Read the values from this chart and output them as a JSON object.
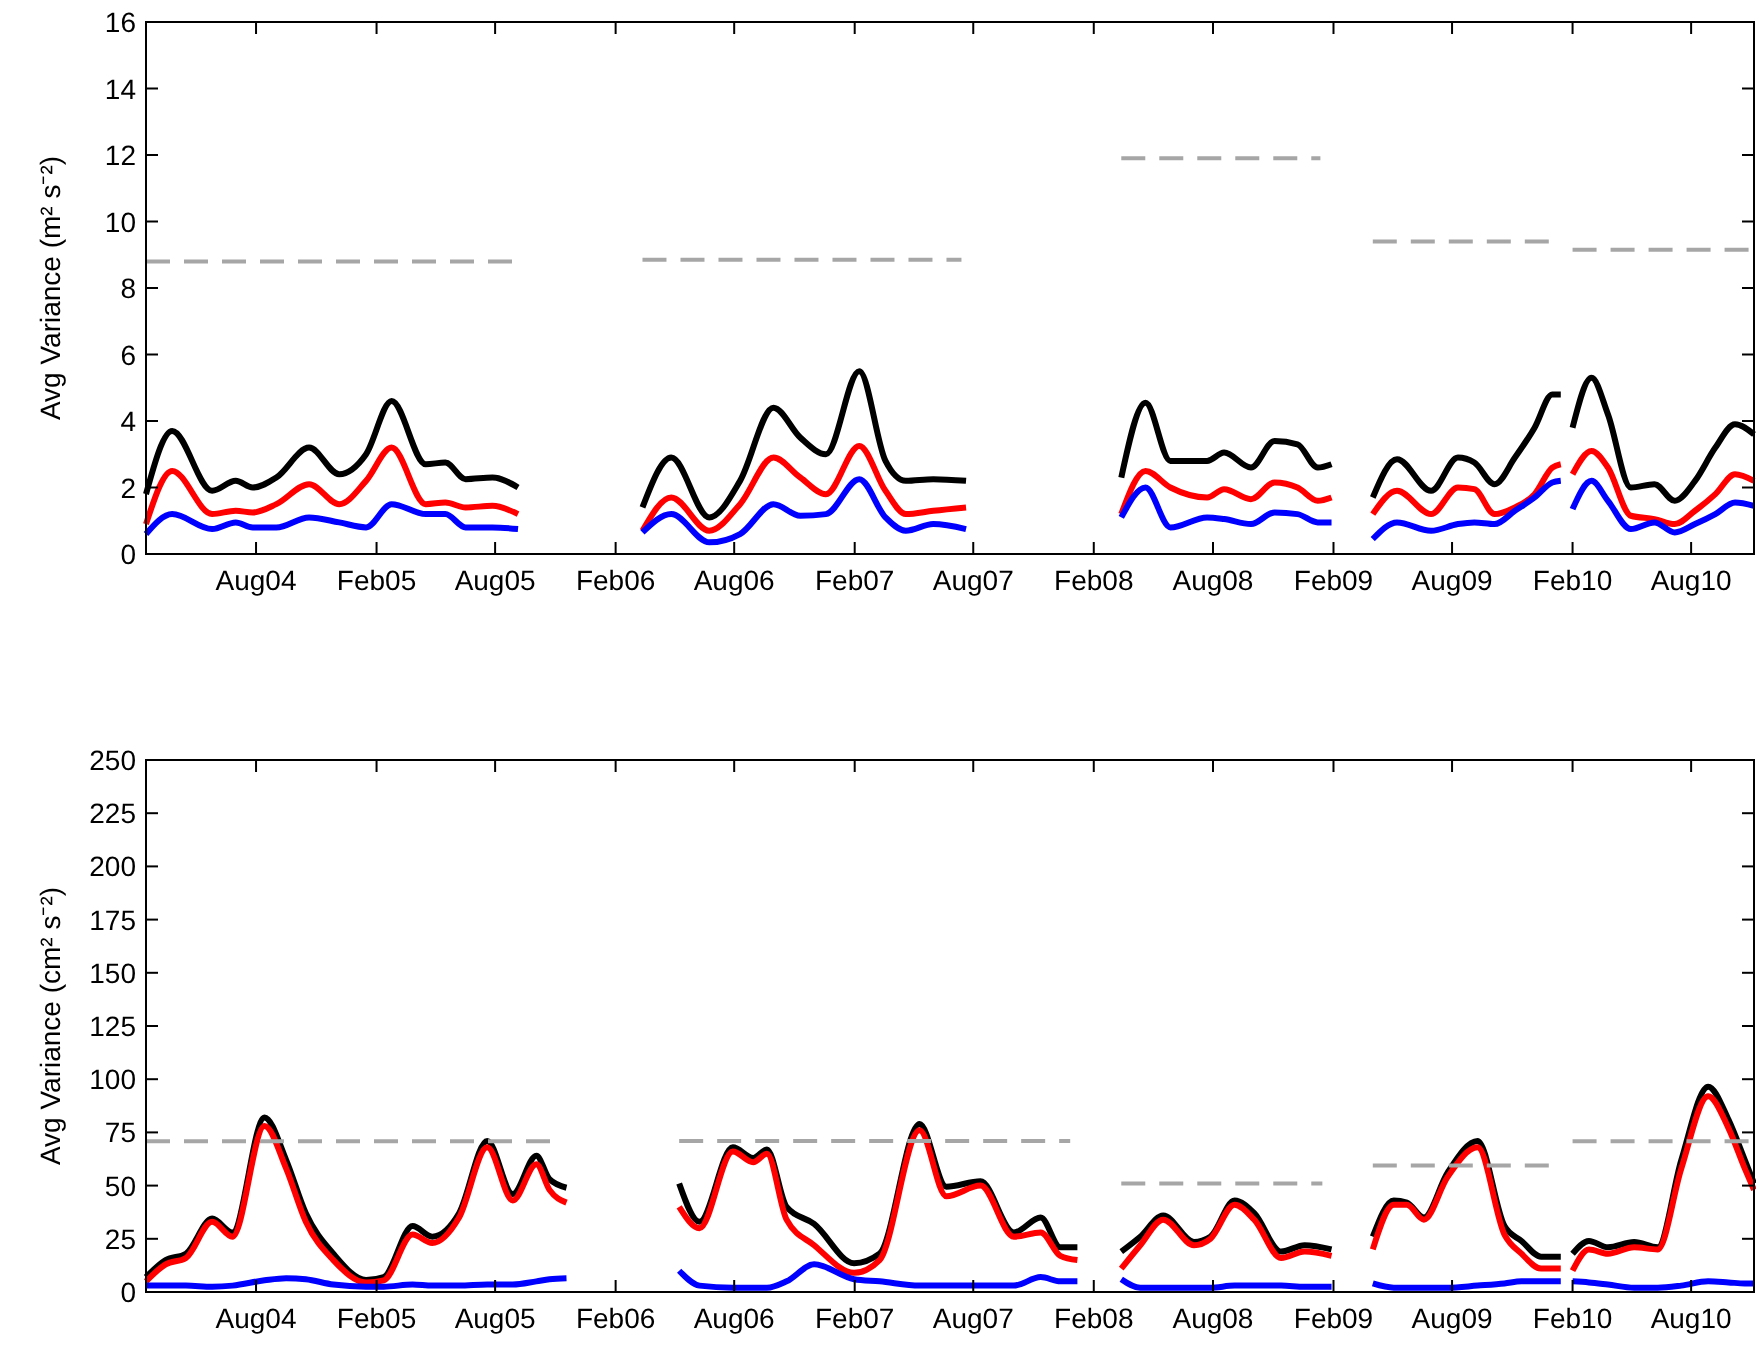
{
  "chart_data": [
    {
      "type": "line",
      "ylabel": "Avg Variance (m² s⁻²)",
      "xlim": [
        "2004-02-15",
        "2010-11-05"
      ],
      "ylim": [
        0,
        16
      ],
      "yticks": [
        0,
        2,
        4,
        6,
        8,
        10,
        12,
        14,
        16
      ],
      "xticks": [
        {
          "value": "2004-08-01",
          "label": "Aug04"
        },
        {
          "value": "2005-02-01",
          "label": "Feb05"
        },
        {
          "value": "2005-08-01",
          "label": "Aug05"
        },
        {
          "value": "2006-02-01",
          "label": "Feb06"
        },
        {
          "value": "2006-08-01",
          "label": "Aug06"
        },
        {
          "value": "2007-02-01",
          "label": "Feb07"
        },
        {
          "value": "2007-08-01",
          "label": "Aug07"
        },
        {
          "value": "2008-02-01",
          "label": "Feb08"
        },
        {
          "value": "2008-08-01",
          "label": "Aug08"
        },
        {
          "value": "2009-02-01",
          "label": "Feb09"
        },
        {
          "value": "2009-08-01",
          "label": "Aug09"
        },
        {
          "value": "2010-02-01",
          "label": "Feb10"
        },
        {
          "value": "2010-08-01",
          "label": "Aug10"
        }
      ],
      "grid": false,
      "marker": "none",
      "x": [
        "2004-02-15",
        "2004-03-26",
        "2004-05-26",
        "2004-07-01",
        "2004-07-27",
        "2004-09-01",
        "2004-10-21",
        "2004-12-06",
        "2005-01-16",
        "2005-02-24",
        "2005-04-17",
        "2005-05-17",
        "2005-06-17",
        "2005-07-28",
        "2005-09-05",
        "2005-12-01",
        "2006-03-14",
        "2006-04-27",
        "2006-06-24",
        "2006-08-10",
        "2006-09-30",
        "2006-11-10",
        "2006-12-19",
        "2007-02-08",
        "2007-03-20",
        "2007-04-20",
        "2007-06-01",
        "2007-07-21",
        "2007-11-01",
        "2008-03-14",
        "2008-04-20",
        "2008-05-28",
        "2008-07-23",
        "2008-08-18",
        "2008-09-28",
        "2008-11-03",
        "2008-12-08",
        "2009-01-08",
        "2009-01-29",
        "2009-03-01",
        "2009-04-02",
        "2009-05-09",
        "2009-06-30",
        "2009-08-10",
        "2009-09-04",
        "2009-10-05",
        "2009-11-05",
        "2009-12-05",
        "2010-01-01",
        "2010-01-14",
        "2010-01-20",
        "2010-02-01",
        "2010-03-02",
        "2010-03-27",
        "2010-05-01",
        "2010-06-06",
        "2010-07-07",
        "2010-08-07",
        "2010-09-07",
        "2010-10-07",
        "2010-11-05"
      ],
      "series": [
        {
          "color": "#000000",
          "line_style": "solid",
          "values": [
            1.8,
            3.7,
            1.9,
            2.2,
            2.0,
            2.3,
            3.2,
            2.4,
            3.0,
            4.6,
            2.7,
            2.75,
            2.25,
            2.3,
            2.0,
            null,
            1.4,
            2.9,
            1.1,
            2.2,
            4.4,
            3.5,
            3.0,
            5.5,
            2.8,
            2.2,
            2.25,
            2.2,
            null,
            2.3,
            4.55,
            2.8,
            2.8,
            3.05,
            2.6,
            3.4,
            3.3,
            2.6,
            2.7,
            null,
            1.7,
            2.85,
            1.9,
            2.9,
            2.75,
            2.1,
            2.9,
            3.8,
            4.8,
            4.8,
            null,
            3.8,
            5.3,
            4.2,
            2.0,
            2.1,
            1.6,
            2.2,
            3.2,
            3.9,
            3.6
          ]
        },
        {
          "color": "#ff0000",
          "line_style": "solid",
          "values": [
            0.9,
            2.5,
            1.2,
            1.3,
            1.25,
            1.5,
            2.1,
            1.5,
            2.2,
            3.2,
            1.5,
            1.55,
            1.4,
            1.45,
            1.2,
            null,
            0.7,
            1.7,
            0.7,
            1.5,
            2.9,
            2.3,
            1.8,
            3.25,
            1.9,
            1.2,
            1.3,
            1.4,
            null,
            1.2,
            2.5,
            2.0,
            1.7,
            1.95,
            1.65,
            2.15,
            2.0,
            1.6,
            1.7,
            null,
            1.2,
            1.9,
            1.2,
            2.0,
            1.95,
            1.2,
            1.4,
            1.8,
            2.6,
            2.7,
            null,
            2.4,
            3.1,
            2.6,
            1.15,
            1.05,
            0.9,
            1.3,
            1.8,
            2.4,
            2.2
          ]
        },
        {
          "color": "#0000ff",
          "line_style": "solid",
          "values": [
            0.6,
            1.2,
            0.75,
            0.95,
            0.8,
            0.8,
            1.1,
            0.95,
            0.8,
            1.5,
            1.2,
            1.2,
            0.8,
            0.8,
            0.75,
            null,
            0.65,
            1.2,
            0.35,
            0.6,
            1.5,
            1.15,
            1.2,
            2.25,
            1.1,
            0.7,
            0.9,
            0.75,
            null,
            1.1,
            2.0,
            0.8,
            1.1,
            1.05,
            0.9,
            1.25,
            1.2,
            0.95,
            0.95,
            null,
            0.45,
            0.95,
            0.7,
            0.9,
            0.95,
            0.9,
            1.3,
            1.7,
            2.15,
            2.2,
            null,
            1.35,
            2.2,
            1.6,
            0.75,
            0.95,
            0.65,
            0.9,
            1.2,
            1.55,
            1.45
          ]
        },
        {
          "color": "#a6a6a6",
          "line_style": "dashed",
          "x": [
            "2004-02-15",
            "2005-08-28",
            "2005-12-01",
            "2006-03-14",
            "2007-07-14",
            "2007-11-01",
            "2008-03-14",
            "2009-01-12",
            "2009-03-01",
            "2009-04-02",
            "2010-01-03",
            "2010-01-20",
            "2010-02-01",
            "2010-11-05"
          ],
          "values": [
            8.8,
            8.8,
            null,
            8.85,
            8.85,
            null,
            11.9,
            11.9,
            null,
            9.4,
            9.4,
            null,
            9.15,
            9.15
          ]
        }
      ]
    },
    {
      "type": "line",
      "ylabel": "Avg Variance (cm² s⁻²)",
      "xlim": [
        "2004-02-15",
        "2010-11-05"
      ],
      "ylim": [
        0,
        250
      ],
      "yticks": [
        0,
        25,
        50,
        75,
        100,
        125,
        150,
        175,
        200,
        225,
        250
      ],
      "xticks": [
        {
          "value": "2004-08-01",
          "label": "Aug04"
        },
        {
          "value": "2005-02-01",
          "label": "Feb05"
        },
        {
          "value": "2005-08-01",
          "label": "Aug05"
        },
        {
          "value": "2006-02-01",
          "label": "Feb06"
        },
        {
          "value": "2006-08-01",
          "label": "Aug06"
        },
        {
          "value": "2007-02-01",
          "label": "Feb07"
        },
        {
          "value": "2007-08-01",
          "label": "Aug07"
        },
        {
          "value": "2008-02-01",
          "label": "Feb08"
        },
        {
          "value": "2008-08-01",
          "label": "Aug08"
        },
        {
          "value": "2009-02-01",
          "label": "Feb09"
        },
        {
          "value": "2009-08-01",
          "label": "Aug09"
        },
        {
          "value": "2010-02-01",
          "label": "Feb10"
        },
        {
          "value": "2010-08-01",
          "label": "Aug10"
        }
      ],
      "grid": false,
      "marker": "none",
      "x": [
        "2004-02-15",
        "2004-03-16",
        "2004-04-16",
        "2004-05-26",
        "2004-06-26",
        "2004-08-14",
        "2004-09-16",
        "2004-10-16",
        "2004-11-27",
        "2005-01-16",
        "2005-02-12",
        "2005-03-28",
        "2005-04-27",
        "2005-06-07",
        "2005-07-20",
        "2005-08-28",
        "2005-10-03",
        "2005-10-23",
        "2005-11-18",
        "2006-01-15",
        "2006-05-09",
        "2006-06-09",
        "2006-07-30",
        "2006-08-30",
        "2006-09-20",
        "2006-10-20",
        "2006-12-01",
        "2007-01-31",
        "2007-03-11",
        "2007-05-11",
        "2007-06-21",
        "2007-08-12",
        "2007-10-02",
        "2007-11-12",
        "2007-12-12",
        "2008-01-07",
        "2008-02-10",
        "2008-03-14",
        "2008-04-12",
        "2008-05-17",
        "2008-07-03",
        "2008-07-28",
        "2008-09-03",
        "2008-10-03",
        "2008-11-13",
        "2008-12-19",
        "2009-01-29",
        "2009-03-01",
        "2009-04-02",
        "2009-05-04",
        "2009-05-24",
        "2009-06-19",
        "2009-07-25",
        "2009-09-09",
        "2009-10-20",
        "2009-11-15",
        "2009-12-15",
        "2010-01-14",
        "2010-01-20",
        "2010-02-01",
        "2010-02-26",
        "2010-03-27",
        "2010-05-06",
        "2010-06-11",
        "2010-07-17",
        "2010-08-27",
        "2010-09-27",
        "2010-10-22",
        "2010-11-05"
      ],
      "series": [
        {
          "color": "#000000",
          "line_style": "solid",
          "values": [
            7,
            15,
            18,
            34.5,
            28,
            82,
            62,
            37,
            18,
            5.6,
            7,
            31,
            26,
            37,
            71,
            46,
            64,
            53,
            49,
            null,
            51,
            33,
            68,
            63,
            67,
            40,
            32,
            13.5,
            18,
            79,
            49.5,
            52,
            28,
            35,
            21,
            21,
            null,
            19,
            26,
            36,
            23.5,
            26,
            43,
            37,
            19,
            22,
            20,
            null,
            26,
            43,
            42,
            35,
            56,
            71,
            31,
            24,
            16.6,
            16.6,
            null,
            18,
            24,
            21,
            23.5,
            21,
            62,
            96.5,
            81,
            62,
            51
          ]
        },
        {
          "color": "#ff0000",
          "line_style": "solid",
          "values": [
            5,
            13,
            16,
            33,
            26,
            78,
            58,
            33,
            15,
            4.5,
            5.5,
            27,
            23,
            35,
            68,
            43,
            60,
            48,
            42,
            null,
            40,
            30,
            66,
            61,
            65,
            34,
            22,
            9,
            15,
            76,
            45,
            50,
            26,
            28,
            17,
            15,
            null,
            11,
            22,
            34,
            22,
            25,
            41,
            34,
            16,
            19,
            17,
            null,
            20,
            41,
            41,
            34,
            54,
            68,
            27,
            18,
            11,
            11,
            null,
            10,
            20,
            18,
            21,
            20,
            58,
            92,
            77,
            58,
            48
          ]
        },
        {
          "color": "#0000ff",
          "line_style": "solid",
          "values": [
            3,
            3,
            3,
            2.5,
            3,
            5.5,
            6.5,
            6,
            3.5,
            2.5,
            2.5,
            3.5,
            3,
            3,
            3.5,
            3.5,
            5,
            6,
            6.5,
            null,
            10,
            3,
            2,
            2,
            2,
            5,
            13,
            6,
            5,
            3,
            3,
            3,
            3,
            7,
            5,
            5,
            null,
            6,
            2,
            2,
            2,
            2,
            3,
            3,
            3,
            2.5,
            2.5,
            null,
            4,
            2,
            2,
            2,
            2,
            3,
            4,
            5,
            5,
            5,
            null,
            5,
            4.5,
            3.5,
            2,
            2,
            3,
            5,
            4.5,
            4,
            4
          ]
        },
        {
          "color": "#a6a6a6",
          "line_style": "dashed",
          "x": [
            "2004-02-15",
            "2005-11-03",
            "2006-01-15",
            "2006-05-09",
            "2007-12-27",
            "2008-02-10",
            "2008-03-14",
            "2009-01-15",
            "2009-03-01",
            "2009-04-02",
            "2010-01-04",
            "2010-01-20",
            "2010-02-01",
            "2010-11-05"
          ],
          "values": [
            70.8,
            70.8,
            null,
            71,
            71,
            null,
            51,
            51,
            null,
            59.5,
            59.5,
            null,
            70.8,
            70.8
          ]
        }
      ]
    }
  ]
}
